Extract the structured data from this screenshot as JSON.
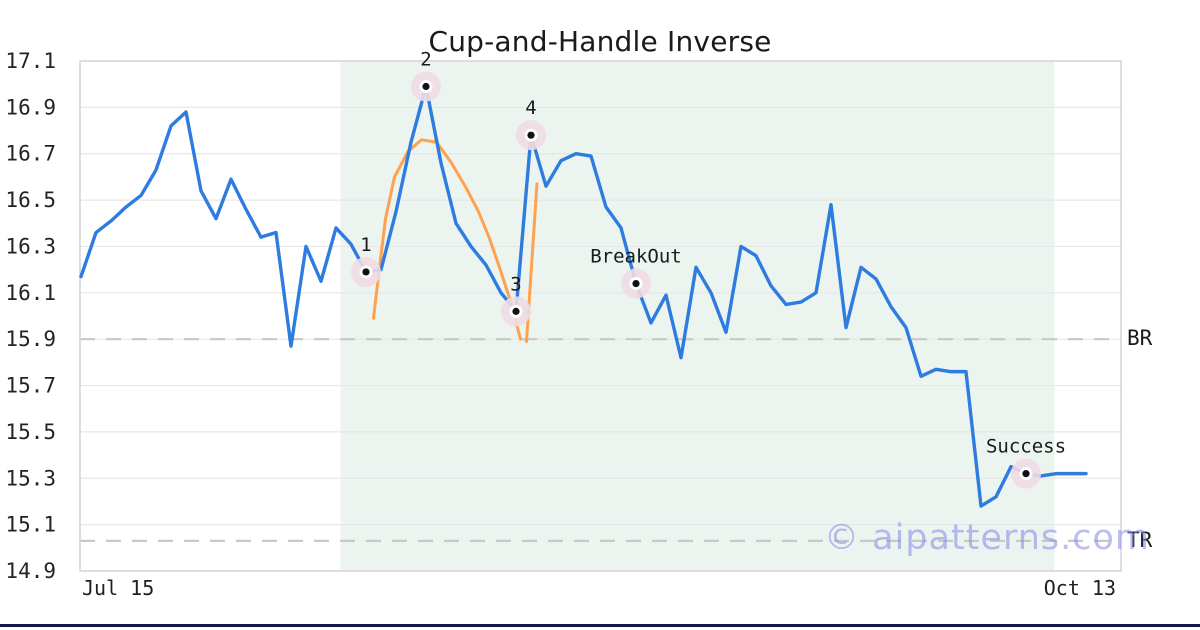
{
  "page": {
    "watermark": "© aipatterns.com"
  },
  "chart_data": {
    "type": "line",
    "title": "Cup-and-Handle Inverse",
    "x_axis": {
      "start_label": "Jul 15",
      "end_label": "Oct 13"
    },
    "y_axis": {
      "min": 14.9,
      "max": 17.1,
      "tick_step": 0.2,
      "tick_labels": [
        "17.1",
        "16.9",
        "16.7",
        "16.5",
        "16.3",
        "16.1",
        "15.9",
        "15.7",
        "15.5",
        "15.3",
        "15.1",
        "14.9"
      ]
    },
    "grid": "horizontal",
    "legend_position": "none",
    "series": [
      {
        "name": "price",
        "type": "line",
        "color": "#2e7ce0",
        "values": [
          16.17,
          16.36,
          16.41,
          16.47,
          16.52,
          16.63,
          16.82,
          16.88,
          16.54,
          16.42,
          16.59,
          16.46,
          16.34,
          16.36,
          15.87,
          16.3,
          16.15,
          16.38,
          16.31,
          16.19,
          16.2,
          16.45,
          16.75,
          16.99,
          16.66,
          16.4,
          16.3,
          16.22,
          16.1,
          16.02,
          16.78,
          16.56,
          16.67,
          16.7,
          16.69,
          16.47,
          16.38,
          16.14,
          15.97,
          16.09,
          15.82,
          16.21,
          16.1,
          15.93,
          16.3,
          16.26,
          16.13,
          16.05,
          16.06,
          16.1,
          16.48,
          15.95,
          16.21,
          16.16,
          16.04,
          15.95,
          15.74,
          15.77,
          15.76,
          15.76,
          15.18,
          15.22,
          15.35,
          15.32,
          15.31,
          15.32,
          15.32,
          15.32
        ]
      },
      {
        "name": "cup-outline",
        "type": "curve",
        "color": "#ffa14f",
        "points": [
          [
            19.5,
            15.99
          ],
          [
            19.9,
            16.21
          ],
          [
            20.3,
            16.42
          ],
          [
            20.9,
            16.6
          ],
          [
            21.8,
            16.71
          ],
          [
            22.7,
            16.76
          ],
          [
            23.7,
            16.75
          ],
          [
            24.7,
            16.66
          ],
          [
            25.7,
            16.55
          ],
          [
            26.5,
            16.45
          ],
          [
            27.2,
            16.34
          ],
          [
            27.9,
            16.21
          ],
          [
            28.6,
            16.07
          ],
          [
            29.3,
            15.9
          ]
        ]
      },
      {
        "name": "handle-outline",
        "type": "line",
        "color": "#ffa14f",
        "points": [
          [
            29.7,
            15.89
          ],
          [
            30.4,
            16.57
          ]
        ]
      }
    ],
    "markers": [
      {
        "label": "1",
        "t": 19,
        "value": 16.19
      },
      {
        "label": "2",
        "t": 23,
        "value": 16.99
      },
      {
        "label": "3",
        "t": 29,
        "value": 16.02
      },
      {
        "label": "4",
        "t": 30,
        "value": 16.78
      },
      {
        "label": "BreakOut",
        "t": 37,
        "value": 16.14
      },
      {
        "label": "Success",
        "t": 63,
        "value": 15.32
      }
    ],
    "levels": [
      {
        "label": "BR",
        "value": 15.9
      },
      {
        "label": "TR",
        "value": 15.03
      }
    ],
    "pattern_zone": {
      "t_start": 17.3,
      "t_end": 64.9
    }
  },
  "style": {
    "price_color": "#2e7ce0",
    "overlay_color": "#ffa14f",
    "zone_fill": "#ecf4ef",
    "marker_halo": "#f0dce4",
    "marker_dot": "#111111",
    "grid_color": "#e7e7e7",
    "border_color": "#d6d6d6",
    "dash_color": "#c8c8c8",
    "watermark_color": "#8a8eeb",
    "footer_bar_color": "#16164a"
  }
}
